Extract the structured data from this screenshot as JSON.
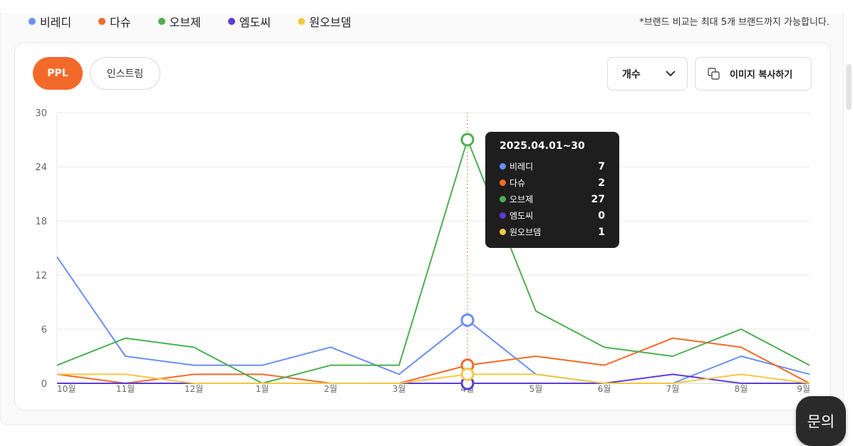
{
  "legend": [
    {
      "label": "비레디",
      "color": "#6b8ff2"
    },
    {
      "label": "다슈",
      "color": "#f26a2a"
    },
    {
      "label": "오브제",
      "color": "#4caf50"
    },
    {
      "label": "엠도씨",
      "color": "#5c3bd8"
    },
    {
      "label": "원오브뎀",
      "color": "#f5c842"
    }
  ],
  "notice": "*브랜드 비교는 최대 5개 브랜드까지 가능합니다.",
  "tabs": {
    "ppl": "PPL",
    "instream": "인스트림"
  },
  "metric_select": {
    "value": "개수"
  },
  "copy_button": {
    "label": "이미지 복사하기"
  },
  "tooltip": {
    "title": "2025.04.01~30",
    "rows": [
      {
        "name": "비레디",
        "value": "7",
        "color": "#6b8ff2"
      },
      {
        "name": "다슈",
        "value": "2",
        "color": "#f26a2a"
      },
      {
        "name": "오브제",
        "value": "27",
        "color": "#4caf50"
      },
      {
        "name": "엠도씨",
        "value": "0",
        "color": "#5c3bd8"
      },
      {
        "name": "원오브뎀",
        "value": "1",
        "color": "#f5c842"
      }
    ]
  },
  "inquiry_button": "문의",
  "chart_data": {
    "type": "line",
    "categories": [
      "10월",
      "11월",
      "12월",
      "1월",
      "2월",
      "3월",
      "4월",
      "5월",
      "6월",
      "7월",
      "8월",
      "9월"
    ],
    "yticks": [
      0,
      6,
      12,
      18,
      24,
      30
    ],
    "ylim": [
      0,
      30
    ],
    "grid": true,
    "highlight_index": 6,
    "series": [
      {
        "name": "비레디",
        "color": "#6b8ff2",
        "values": [
          14,
          3,
          2,
          2,
          4,
          1,
          7,
          1,
          0,
          0,
          3,
          1
        ]
      },
      {
        "name": "다슈",
        "color": "#f26a2a",
        "values": [
          1,
          0,
          1,
          1,
          0,
          0,
          2,
          3,
          2,
          5,
          4,
          0
        ]
      },
      {
        "name": "오브제",
        "color": "#4caf50",
        "values": [
          2,
          5,
          4,
          0,
          2,
          2,
          27,
          8,
          4,
          3,
          6,
          2
        ]
      },
      {
        "name": "엠도씨",
        "color": "#5c3bd8",
        "values": [
          0,
          0,
          0,
          0,
          0,
          0,
          0,
          0,
          0,
          1,
          0,
          0
        ]
      },
      {
        "name": "원오브뎀",
        "color": "#f5c842",
        "values": [
          1,
          1,
          0,
          0,
          0,
          0,
          1,
          1,
          0,
          0,
          1,
          0
        ]
      }
    ]
  }
}
